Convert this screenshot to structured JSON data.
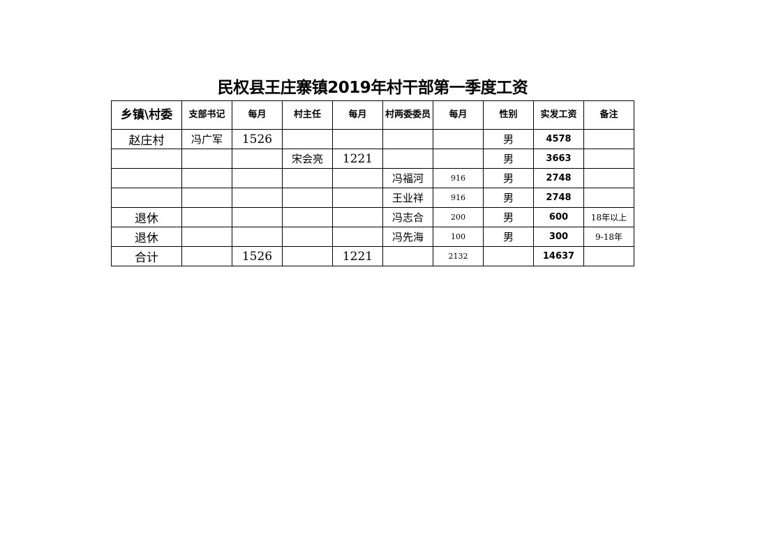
{
  "title": "民权县王庄寨镇2019年村干部第一季度工资",
  "headers": [
    "乡镇\\村委",
    "支部书记",
    "每月",
    "村主任",
    "每月",
    "村两委委员",
    "每月",
    "性别",
    "实发工资",
    "备注"
  ],
  "rows": [
    [
      "赵庄村",
      "冯广军",
      "1526",
      "",
      "",
      "",
      "",
      "男",
      "4578",
      ""
    ],
    [
      "",
      "",
      "",
      "宋会亮",
      "1221",
      "",
      "",
      "男",
      "3663",
      ""
    ],
    [
      "",
      "",
      "",
      "",
      "",
      "冯福河",
      "916",
      "男",
      "2748",
      ""
    ],
    [
      "",
      "",
      "",
      "",
      "",
      "王业祥",
      "916",
      "男",
      "2748",
      ""
    ],
    [
      "退休",
      "",
      "",
      "",
      "",
      "冯志合",
      "200",
      "男",
      "600",
      "18年以上"
    ],
    [
      "退休",
      "",
      "",
      "",
      "",
      "冯先海",
      "100",
      "男",
      "300",
      "9-18年"
    ],
    [
      "合计",
      "",
      "1526",
      "",
      "1221",
      "",
      "2132",
      "",
      "14637",
      ""
    ]
  ]
}
